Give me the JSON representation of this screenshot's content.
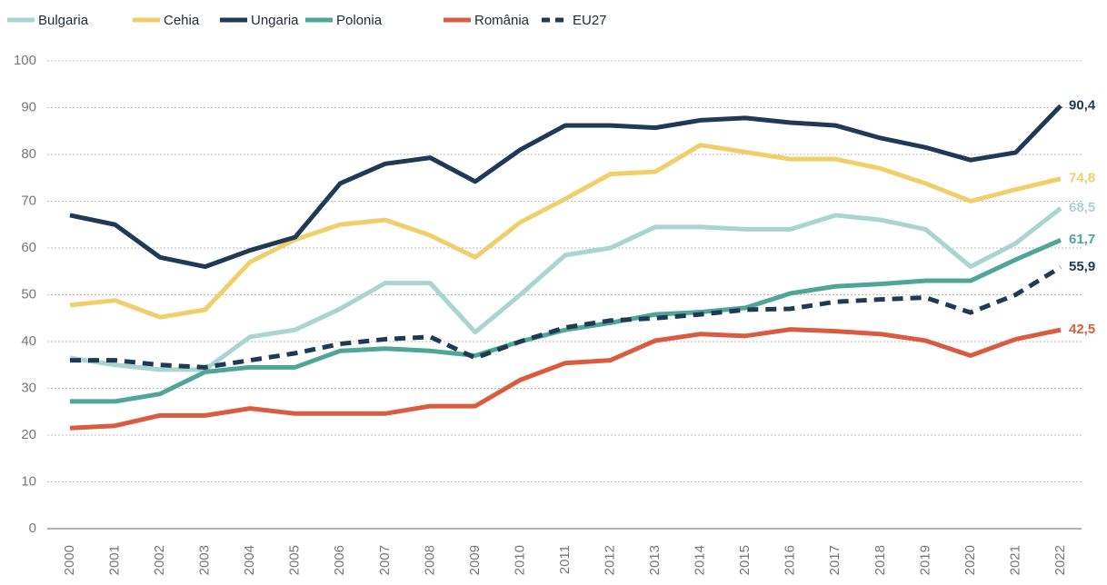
{
  "chart_data": {
    "type": "line",
    "categories": [
      "2000",
      "2001",
      "2002",
      "2003",
      "2004",
      "2005",
      "2006",
      "2007",
      "2008",
      "2009",
      "2010",
      "2011",
      "2012",
      "2013",
      "2014",
      "2015",
      "2016",
      "2017",
      "2018",
      "2019",
      "2020",
      "2021",
      "2022"
    ],
    "ylim": [
      0,
      100
    ],
    "yticks": [
      0,
      10,
      20,
      30,
      40,
      50,
      60,
      70,
      80,
      90,
      100
    ],
    "grid": true,
    "legend": "top",
    "series": [
      {
        "name": "Bulgaria",
        "color": "#a8d5cf",
        "values": [
          36.5,
          35,
          34,
          34,
          41,
          42.5,
          47,
          52.5,
          52.5,
          42,
          50,
          58.5,
          60,
          64.5,
          64.5,
          64,
          64,
          67,
          66,
          64,
          56,
          61,
          68.5
        ],
        "value_labels": [
          null,
          null,
          null,
          null,
          null,
          null,
          null,
          null,
          null,
          null,
          null,
          null,
          null,
          null,
          null,
          null,
          null,
          null,
          null,
          null,
          null,
          null,
          "68,5"
        ]
      },
      {
        "name": "Cehia",
        "color": "#f0cf6a",
        "values": [
          47.8,
          48.8,
          45.2,
          46.8,
          57,
          61.8,
          65,
          66,
          62.7,
          58,
          65.5,
          70.5,
          75.8,
          76.3,
          82,
          80.5,
          79,
          79,
          77,
          73.8,
          70,
          72.5,
          74.8
        ],
        "value_labels": [
          null,
          null,
          null,
          null,
          null,
          null,
          null,
          null,
          null,
          null,
          null,
          null,
          null,
          null,
          null,
          null,
          null,
          null,
          null,
          null,
          null,
          null,
          "74,8"
        ]
      },
      {
        "name": "Ungaria",
        "color": "#1e3a56",
        "values": [
          67,
          65,
          58,
          56,
          59.5,
          62.3,
          73.8,
          78,
          79.3,
          74.2,
          81,
          86.2,
          86.2,
          85.7,
          87.3,
          87.8,
          86.8,
          86.2,
          83.5,
          81.5,
          78.8,
          80.4,
          90.4
        ],
        "value_labels": [
          null,
          null,
          null,
          null,
          null,
          null,
          null,
          null,
          null,
          null,
          null,
          null,
          null,
          null,
          null,
          null,
          null,
          null,
          null,
          null,
          null,
          null,
          "90,4"
        ]
      },
      {
        "name": "Polonia",
        "color": "#4fa596",
        "values": [
          27.2,
          27.2,
          28.8,
          33.5,
          34.5,
          34.5,
          38,
          38.5,
          38,
          37,
          40,
          42.5,
          44,
          45.8,
          46.3,
          47.2,
          50.3,
          51.8,
          52.3,
          53,
          53,
          57.5,
          61.7
        ],
        "value_labels": [
          null,
          null,
          null,
          null,
          null,
          null,
          null,
          null,
          null,
          null,
          null,
          null,
          null,
          null,
          null,
          null,
          null,
          null,
          null,
          null,
          null,
          null,
          "61,7"
        ]
      },
      {
        "name": "România",
        "color": "#d95c40",
        "values": [
          21.5,
          22,
          24.2,
          24.2,
          25.7,
          24.6,
          24.6,
          24.6,
          26.2,
          26.2,
          31.8,
          35.4,
          36,
          40.2,
          41.6,
          41.2,
          42.6,
          42.2,
          41.6,
          40.2,
          37,
          40.5,
          42.5
        ],
        "value_labels": [
          null,
          null,
          null,
          null,
          null,
          null,
          null,
          null,
          null,
          null,
          null,
          null,
          null,
          null,
          null,
          null,
          null,
          null,
          null,
          null,
          null,
          null,
          "42,5"
        ]
      },
      {
        "name": "EU27",
        "color": "#1e3a56",
        "dashed": true,
        "values": [
          36,
          36,
          35,
          34.5,
          36,
          37.5,
          39.5,
          40.5,
          41,
          36.5,
          40,
          43,
          44.5,
          45,
          45.8,
          46.8,
          47,
          48.5,
          49,
          49.4,
          46.2,
          50,
          55.9
        ],
        "value_labels": [
          null,
          null,
          null,
          null,
          null,
          null,
          null,
          null,
          null,
          null,
          null,
          null,
          null,
          null,
          null,
          null,
          null,
          null,
          null,
          null,
          null,
          null,
          "55,9"
        ]
      }
    ]
  }
}
